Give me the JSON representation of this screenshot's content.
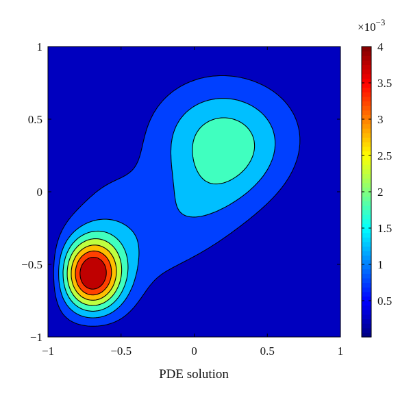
{
  "chart_data": {
    "type": "contour",
    "title": "",
    "xlabel": "PDE solution",
    "ylabel": "",
    "xlim": [
      -1,
      1
    ],
    "ylim": [
      -1,
      1
    ],
    "x_ticks": [
      -1,
      -0.5,
      0,
      0.5,
      1
    ],
    "x_tick_labels": [
      "−1",
      "−0.5",
      "0",
      "0.5",
      "1"
    ],
    "y_ticks": [
      -1,
      -0.5,
      0,
      0.5,
      1
    ],
    "y_tick_labels": [
      "−1",
      "−0.5",
      "0",
      "0.5",
      "1"
    ],
    "grid": false,
    "colorbar": {
      "range": [
        0,
        4
      ],
      "exponent_label": "×10",
      "exponent_power": "−3",
      "ticks": [
        0.5,
        1,
        1.5,
        2,
        2.5,
        3,
        3.5,
        4
      ],
      "tick_labels": [
        "0.5",
        "1",
        "1.5",
        "2",
        "2.5",
        "3",
        "3.5",
        "4"
      ],
      "colormap": "jet"
    },
    "contour_levels": [
      0.5,
      1,
      1.5,
      2,
      2.5,
      3,
      3.5
    ],
    "peaks": [
      {
        "x": -0.7,
        "y": -0.57,
        "max": 4.0
      },
      {
        "x": 0.18,
        "y": 0.37,
        "max": 1.6
      }
    ]
  }
}
